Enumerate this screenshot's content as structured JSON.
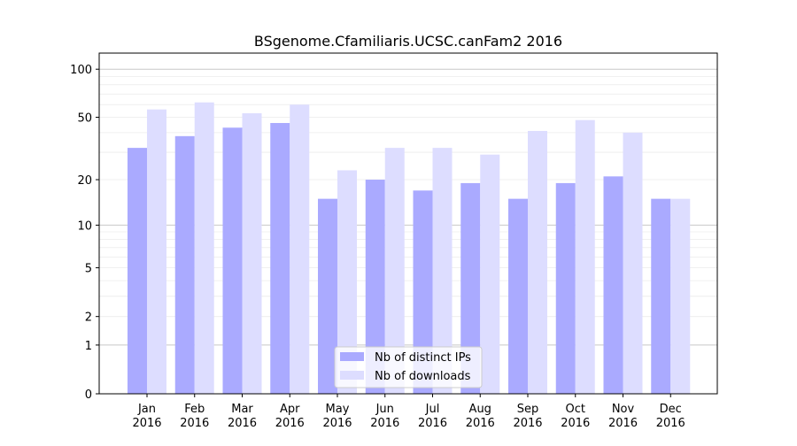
{
  "chart_data": {
    "type": "bar",
    "title": "BSgenome.Cfamiliaris.UCSC.canFam2 2016",
    "xlabel": "",
    "ylabel": "",
    "yscale": "log(1+y)",
    "ylim": [
      0,
      120
    ],
    "yticks": [
      0,
      1,
      2,
      5,
      10,
      20,
      50,
      100
    ],
    "grid": true,
    "legend": "lower-center",
    "categories": [
      "Jan\n2016",
      "Feb\n2016",
      "Mar\n2016",
      "Apr\n2016",
      "May\n2016",
      "Jun\n2016",
      "Jul\n2016",
      "Aug\n2016",
      "Sep\n2016",
      "Oct\n2016",
      "Nov\n2016",
      "Dec\n2016"
    ],
    "series": [
      {
        "name": "Nb of distinct IPs",
        "color": "#aaaaff",
        "values": [
          32,
          38,
          43,
          46,
          15,
          20,
          17,
          19,
          15,
          19,
          21,
          15
        ]
      },
      {
        "name": "Nb of downloads",
        "color": "#ddddff",
        "values": [
          56,
          62,
          53,
          60,
          23,
          32,
          32,
          29,
          41,
          48,
          40,
          15
        ]
      }
    ]
  }
}
